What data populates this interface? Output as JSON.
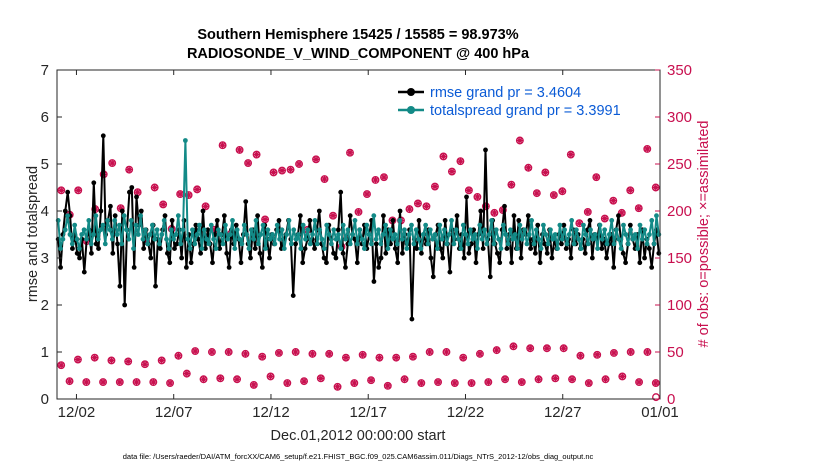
{
  "chart_data": {
    "type": "line",
    "title_line1": "Southern Hemisphere 15425 / 15585 = 98.973%",
    "title_line2": "RADIOSONDE_V_WIND_COMPONENT @ 400 hPa",
    "xlabel": "Dec.01,2012 00:00:00 start",
    "ylabel_left": "rmse and totalspread",
    "ylabel_right": "# of obs: o=possible; ×=assimilated",
    "footer": "data file: /Users/raeder/DAI/ATM_forcXX/CAM6_setup/f.e21.FHIST_BGC.f09_025.CAM6assim.011/Diags_NTrS_2012-12/obs_diag_output.nc",
    "xlim": [
      0.5,
      31.5
    ],
    "x_ticks": [
      1.5,
      6.5,
      11.5,
      16.5,
      21.5,
      26.5,
      31.5
    ],
    "x_tick_labels": [
      "12/02",
      "12/07",
      "12/12",
      "12/17",
      "12/22",
      "12/27",
      "01/01"
    ],
    "ylim_left": [
      0,
      7
    ],
    "y_ticks_left": [
      "0",
      "1",
      "2",
      "3",
      "4",
      "5",
      "6",
      "7"
    ],
    "ylim_right": [
      0,
      350
    ],
    "y_ticks_right": [
      "0",
      "50",
      "100",
      "150",
      "200",
      "250",
      "300",
      "350"
    ],
    "legend": [
      "rmse grand pr = 3.4604",
      "totalspread grand pr = 3.3991"
    ],
    "series": [
      {
        "name": "rmse",
        "color": "#000000",
        "values": [
          3.4,
          2.8,
          3.5,
          4.0,
          4.4,
          3.9,
          3.2,
          3.5,
          3.1,
          3.0,
          3.4,
          2.7,
          3.4,
          3.6,
          3.1,
          4.6,
          3.3,
          3.2,
          4.0,
          5.6,
          3.5,
          3.8,
          4.1,
          3.1,
          3.9,
          3.3,
          2.4,
          4.0,
          2.0,
          3.6,
          4.4,
          4.5,
          2.8,
          4.3,
          3.7,
          4.0,
          3.2,
          3.6,
          3.3,
          3.0,
          3.7,
          2.4,
          3.4,
          3.2,
          3.6,
          3.9,
          3.1,
          2.9,
          3.8,
          3.2,
          3.3,
          3.6,
          3.0,
          3.8,
          2.8,
          3.5,
          2.9,
          3.3,
          3.7,
          3.4,
          3.1,
          4.0,
          3.2,
          3.6,
          3.3,
          2.9,
          3.5,
          3.8,
          3.2,
          3.5,
          3.9,
          3.1,
          2.8,
          3.6,
          3.3,
          3.7,
          3.4,
          2.9,
          3.5,
          4.2,
          3.3,
          3.0,
          3.6,
          3.2,
          3.9,
          3.1,
          2.8,
          3.7,
          3.4,
          3.0,
          3.5,
          3.3,
          3.6,
          3.8,
          3.2,
          3.4,
          3.5,
          3.8,
          3.4,
          2.2,
          3.3,
          3.5,
          3.9,
          2.9,
          3.2,
          3.4,
          3.8,
          3.4,
          3.2,
          3.6,
          4.0,
          3.3,
          3.0,
          2.9,
          3.7,
          3.4,
          3.1,
          3.0,
          3.6,
          4.4,
          3.1,
          2.8,
          3.3,
          3.9,
          3.5,
          3.4,
          2.9,
          3.6,
          3.3,
          3.7,
          3.2,
          3.5,
          3.8,
          2.5,
          3.3,
          2.8,
          3.0,
          3.9,
          3.1,
          3.6,
          3.3,
          3.8,
          3.2,
          2.9,
          4.0,
          3.1,
          3.5,
          3.3,
          3.6,
          1.7,
          3.4,
          3.2,
          3.8,
          3.1,
          3.5,
          3.3,
          3.6,
          3.0,
          2.6,
          3.5,
          3.7,
          3.2,
          3.0,
          3.8,
          3.3,
          2.7,
          3.6,
          3.4,
          3.9,
          3.2,
          3.5,
          3.0,
          4.3,
          3.1,
          3.3,
          3.6,
          2.9,
          3.5,
          4.0,
          3.2,
          5.3,
          3.4,
          2.6,
          3.8,
          3.3,
          3.1,
          2.9,
          3.6,
          4.1,
          3.2,
          3.5,
          2.9,
          3.9,
          3.2,
          3.8,
          3.0,
          3.6,
          3.5,
          3.9,
          3.2,
          3.4,
          3.1,
          3.7,
          2.9,
          3.5,
          3.3,
          3.1,
          3.6,
          3.0,
          3.4,
          3.2,
          3.5,
          3.3,
          3.7,
          3.2,
          3.4,
          3.0,
          3.6,
          3.3,
          3.5,
          3.2,
          3.4,
          3.1,
          3.6,
          3.8,
          3.0,
          3.5,
          3.4,
          3.7,
          3.2,
          3.4,
          3.0,
          3.3,
          3.5,
          2.8,
          3.6,
          3.9,
          3.4,
          3.1,
          2.9,
          3.3,
          3.7,
          3.4,
          3.2,
          3.5,
          2.9,
          3.6,
          3.0,
          3.4,
          3.2,
          2.8,
          3.3,
          3.6,
          3.1
        ]
      },
      {
        "name": "totalspread",
        "color": "#138a87",
        "values": [
          3.8,
          3.2,
          3.4,
          3.6,
          3.9,
          3.5,
          3.3,
          3.7,
          3.4,
          3.2,
          3.5,
          3.6,
          3.4,
          3.8,
          3.3,
          3.5,
          3.9,
          3.4,
          3.6,
          3.7,
          3.3,
          3.8,
          3.6,
          3.4,
          3.8,
          3.5,
          3.7,
          3.3,
          3.9,
          3.6,
          3.4,
          3.8,
          3.2,
          3.7,
          3.5,
          3.9,
          3.4,
          3.6,
          3.3,
          3.5,
          3.7,
          3.4,
          3.6,
          3.3,
          3.5,
          3.8,
          3.4,
          3.2,
          3.6,
          3.4,
          3.5,
          3.9,
          3.3,
          3.6,
          5.5,
          3.4,
          3.2,
          3.6,
          3.3,
          3.5,
          3.7,
          3.2,
          3.6,
          3.4,
          3.3,
          3.7,
          3.4,
          3.2,
          3.6,
          3.5,
          3.3,
          3.7,
          3.4,
          3.5,
          3.8,
          3.2,
          3.6,
          3.4,
          3.3,
          3.7,
          3.5,
          3.2,
          3.6,
          3.4,
          3.8,
          3.3,
          3.5,
          3.7,
          3.2,
          3.6,
          3.4,
          3.5,
          3.3,
          3.7,
          3.4,
          3.6,
          3.2,
          3.5,
          3.8,
          3.3,
          3.6,
          3.4,
          3.5,
          3.2,
          3.7,
          3.4,
          3.6,
          3.3,
          3.5,
          3.8,
          3.3,
          3.6,
          3.4,
          3.2,
          3.7,
          3.5,
          3.3,
          3.6,
          3.4,
          3.5,
          3.2,
          3.7,
          3.4,
          3.6,
          3.3,
          3.5,
          3.8,
          3.3,
          3.6,
          3.4,
          3.2,
          3.7,
          3.5,
          3.3,
          3.9,
          3.4,
          3.6,
          3.3,
          3.5,
          3.7,
          3.2,
          3.6,
          3.4,
          3.5,
          3.3,
          3.8,
          3.4,
          3.6,
          3.2,
          3.5,
          3.7,
          3.3,
          3.6,
          3.4,
          3.2,
          3.5,
          3.7,
          3.3,
          3.6,
          3.4,
          3.5,
          3.2,
          3.7,
          3.4,
          3.6,
          3.3,
          3.5,
          3.8,
          3.3,
          3.6,
          3.4,
          3.2,
          3.7,
          3.5,
          3.3,
          3.6,
          3.4,
          3.5,
          3.2,
          3.7,
          3.4,
          3.6,
          3.3,
          3.5,
          3.8,
          3.3,
          3.6,
          3.4,
          3.2,
          3.7,
          3.5,
          3.3,
          3.6,
          3.4,
          3.5,
          3.2,
          3.7,
          3.4,
          3.6,
          3.3,
          3.5,
          3.8,
          3.3,
          3.6,
          3.4,
          3.2,
          3.7,
          3.5,
          3.3,
          3.6,
          3.4,
          3.5,
          3.2,
          3.7,
          3.4,
          3.6,
          3.3,
          3.5,
          3.8,
          3.3,
          3.6,
          3.4,
          3.2,
          3.7,
          3.5,
          3.3,
          3.6,
          3.4,
          3.5,
          3.2,
          3.7,
          3.4,
          3.6,
          3.3,
          3.5,
          3.8,
          3.3,
          3.6,
          3.4,
          3.2,
          3.7,
          3.5,
          3.3,
          3.6,
          3.4,
          3.5,
          3.2,
          3.7,
          3.4,
          3.6,
          3.3,
          3.5,
          3.8,
          3.3,
          3.9,
          3.5
        ]
      }
    ],
    "obs_upper": [
      222,
      196,
      222,
      168,
      202,
      239,
      251,
      203,
      244,
      220,
      168,
      225,
      207,
      181,
      218,
      217,
      223,
      205,
      180,
      270,
      176,
      265,
      251,
      260,
      191,
      241,
      243,
      244,
      250,
      180,
      255,
      234,
      195,
      162,
      262,
      199,
      218,
      233,
      236,
      190,
      190,
      202,
      208,
      205,
      226,
      258,
      242,
      253,
      222,
      215,
      205,
      198,
      201,
      228,
      275,
      246,
      219,
      241,
      217,
      221,
      260,
      187,
      199,
      236,
      192,
      211,
      198,
      222,
      203,
      266,
      225
    ],
    "obs_lower": [
      36,
      19,
      42,
      18,
      44,
      18,
      41,
      18,
      40,
      18,
      37,
      18,
      41,
      17,
      46,
      27,
      51,
      21,
      50,
      22,
      50,
      21,
      48,
      15,
      45,
      24,
      49,
      17,
      50,
      19,
      48,
      22,
      48,
      13,
      44,
      17,
      47,
      20,
      44,
      14,
      44,
      21,
      45,
      17,
      50,
      18,
      50,
      17,
      44,
      17,
      48,
      18,
      52,
      21,
      56,
      18,
      54,
      21,
      54,
      22,
      54,
      21,
      46,
      17,
      47,
      21,
      49,
      24,
      50,
      18,
      50,
      17
    ]
  }
}
